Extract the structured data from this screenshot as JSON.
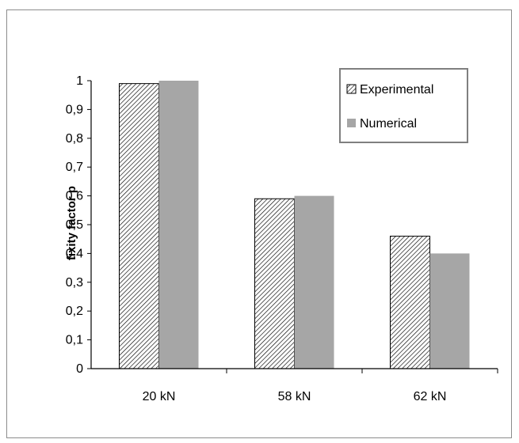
{
  "chart_data": {
    "type": "bar",
    "title": "",
    "xlabel": "",
    "ylabel": "fixity factor p",
    "categories": [
      "20 kN",
      "58 kN",
      "62 kN"
    ],
    "series": [
      {
        "name": "Experimental",
        "values": [
          0.99,
          0.59,
          0.46
        ],
        "pattern": "diagonal-hatch",
        "fill": "#ffffff",
        "stroke": "#000000"
      },
      {
        "name": "Numerical",
        "values": [
          1.0,
          0.6,
          0.4
        ],
        "pattern": "solid",
        "fill": "#a6a6a6"
      }
    ],
    "ylim": [
      0,
      1
    ],
    "yticks": [
      "0",
      "0,1",
      "0,2",
      "0,3",
      "0,4",
      "0,5",
      "0,6",
      "0,7",
      "0,8",
      "0,9",
      "1"
    ],
    "grid": false,
    "legend_position": "top-right"
  }
}
